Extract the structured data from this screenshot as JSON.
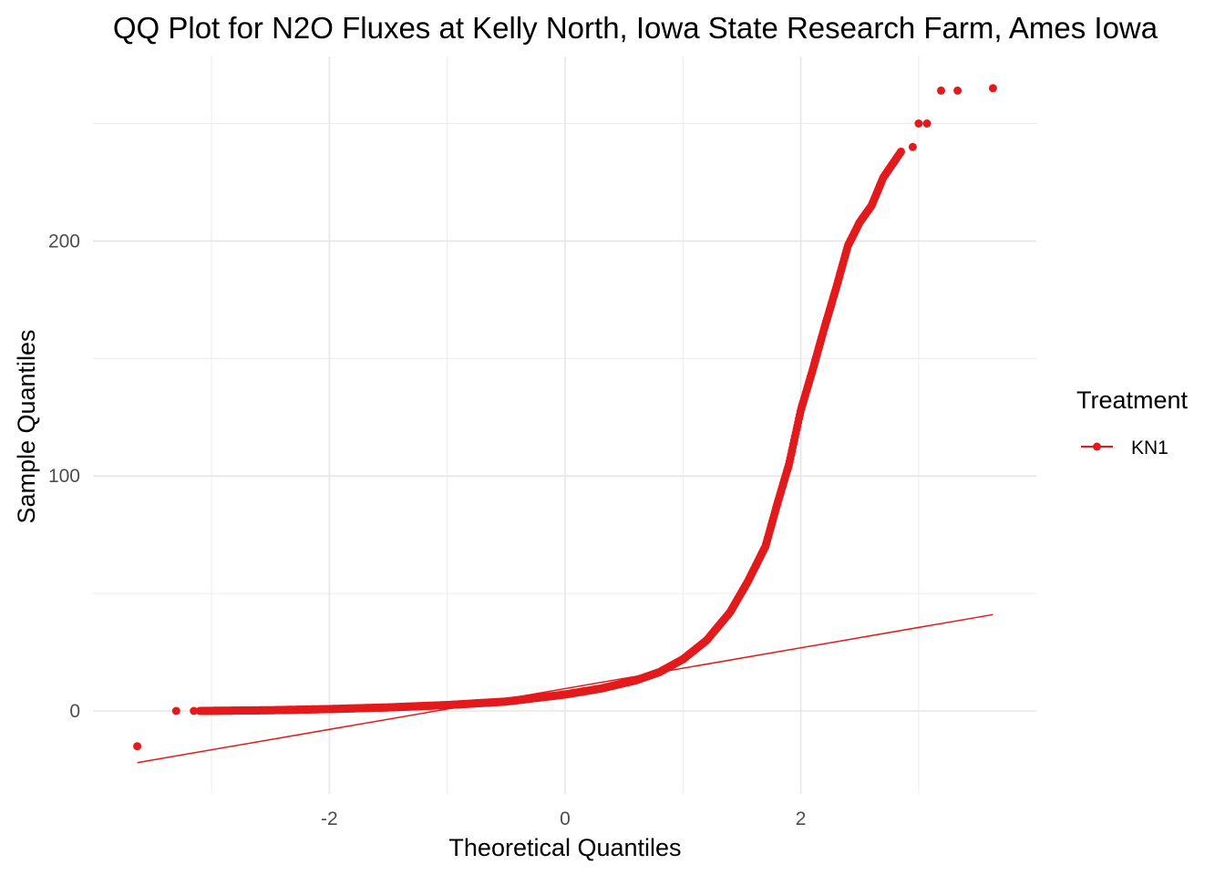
{
  "chart_data": {
    "type": "scatter",
    "title": "QQ Plot for N2O Fluxes at Kelly North, Iowa State Research Farm, Ames Iowa",
    "xlabel": "Theoretical Quantiles",
    "ylabel": "Sample Quantiles",
    "xlim": [
      -3.5,
      3.9
    ],
    "ylim": [
      -35,
      278
    ],
    "x_ticks": [
      -2,
      0,
      2
    ],
    "x_tick_labels": [
      "-2",
      "0",
      "2"
    ],
    "y_ticks": [
      0,
      100,
      200
    ],
    "y_tick_labels": [
      "0",
      "100",
      "200"
    ],
    "grid": true,
    "legend": {
      "title": "Treatment",
      "position": "right",
      "entries": [
        "KN1"
      ]
    },
    "series": [
      {
        "name": "KN1",
        "color": "#e31a1c",
        "curve_anchors": [
          [
            -3.1,
            0.0
          ],
          [
            -2.5,
            0.3
          ],
          [
            -2.0,
            0.8
          ],
          [
            -1.5,
            1.5
          ],
          [
            -1.0,
            2.5
          ],
          [
            -0.5,
            4.0
          ],
          [
            0.0,
            7.0
          ],
          [
            0.3,
            9.5
          ],
          [
            0.6,
            13.0
          ],
          [
            0.8,
            16.5
          ],
          [
            1.0,
            22.0
          ],
          [
            1.2,
            30.0
          ],
          [
            1.4,
            42.0
          ],
          [
            1.55,
            55.0
          ],
          [
            1.7,
            70.0
          ],
          [
            1.8,
            88.0
          ],
          [
            1.9,
            105.0
          ],
          [
            2.0,
            128.0
          ],
          [
            2.1,
            145.0
          ],
          [
            2.2,
            163.0
          ],
          [
            2.3,
            180.0
          ],
          [
            2.4,
            198.0
          ],
          [
            2.5,
            208.0
          ],
          [
            2.6,
            215.0
          ],
          [
            2.7,
            227.0
          ],
          [
            2.85,
            238.0
          ]
        ],
        "outliers": [
          [
            -3.63,
            -15.0
          ],
          [
            -3.3,
            0.0
          ],
          [
            -3.15,
            0.0
          ],
          [
            -3.05,
            0.0
          ],
          [
            -2.95,
            0.0
          ],
          [
            2.95,
            240.0
          ],
          [
            3.0,
            250.0
          ],
          [
            3.07,
            250.0
          ],
          [
            3.19,
            264.0
          ],
          [
            3.33,
            264.0
          ],
          [
            3.63,
            265.0
          ]
        ],
        "reference_line": {
          "x": [
            -3.63,
            3.63
          ],
          "y": [
            -22,
            41
          ]
        }
      }
    ]
  }
}
